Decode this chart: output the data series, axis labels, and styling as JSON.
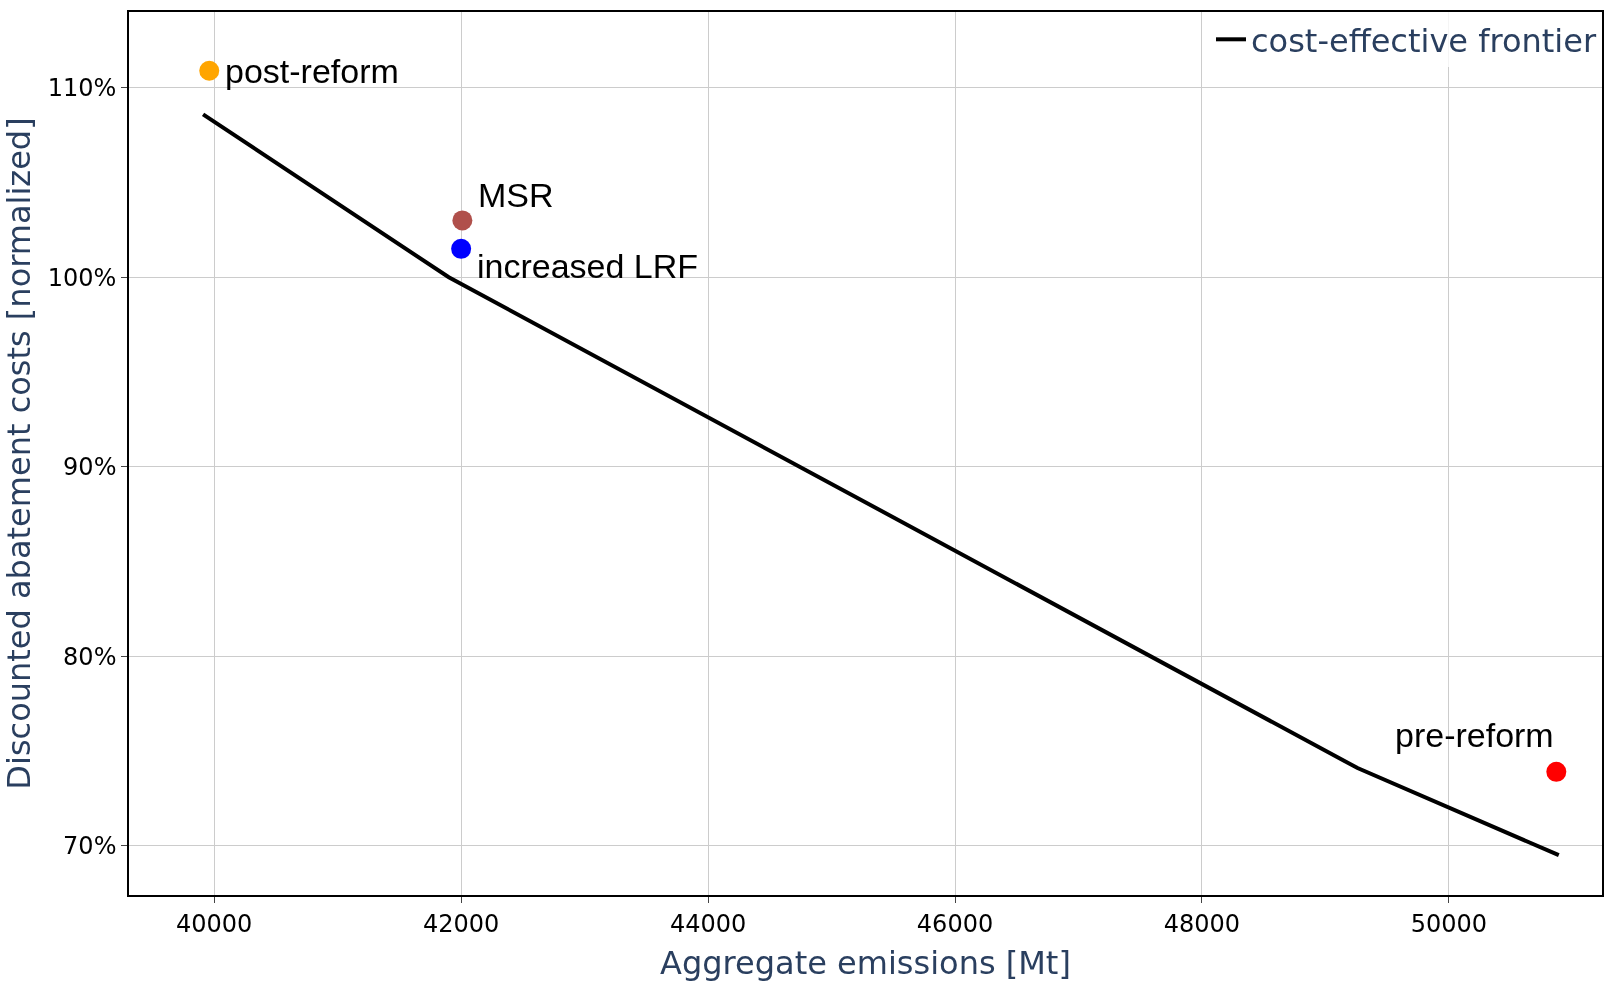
{
  "chart_data": {
    "type": "line",
    "xlabel": "Aggregate emissions [Mt]",
    "ylabel": "Discounted abatement costs [normalized]",
    "xlim": [
      39310,
      51240
    ],
    "xticks": [
      40000,
      42000,
      44000,
      46000,
      48000,
      50000
    ],
    "ylim": [
      67.4,
      114
    ],
    "yticks": [
      {
        "value": 70,
        "label": "70%"
      },
      {
        "value": 80,
        "label": "80%"
      },
      {
        "value": 90,
        "label": "90%"
      },
      {
        "value": 100,
        "label": "100%"
      },
      {
        "value": 110,
        "label": "110%"
      }
    ],
    "grid": true,
    "legend": "top right",
    "annotations": [
      {
        "text": "post-reform",
        "x": 39960,
        "y": 110.9
      },
      {
        "text": "MSR",
        "x": 42010,
        "y": 103.0
      },
      {
        "text": "increased LRF",
        "x": 42000,
        "y": 101.5
      },
      {
        "text": "pre-reform",
        "x": 50870,
        "y": 73.9
      }
    ],
    "series": [
      {
        "name": "cost-effective frontier",
        "color": "#000000",
        "x": [
          39910,
          41900,
          49260,
          50890
        ],
        "values": [
          108.6,
          100.0,
          74.1,
          69.5
        ]
      },
      {
        "type": "scatter",
        "marker": "circle",
        "color": "#ffa500",
        "x": [
          39960
        ],
        "values": [
          110.9
        ]
      },
      {
        "type": "scatter",
        "marker": "circle",
        "color": "#b0504b",
        "x": [
          42010
        ],
        "values": [
          103.0
        ]
      },
      {
        "type": "scatter",
        "marker": "circle",
        "color": "#0000ff",
        "x": [
          42000
        ],
        "values": [
          101.5
        ]
      },
      {
        "type": "scatter",
        "marker": "circle",
        "color": "#ff0000",
        "x": [
          50870
        ],
        "values": [
          73.9
        ]
      }
    ]
  }
}
